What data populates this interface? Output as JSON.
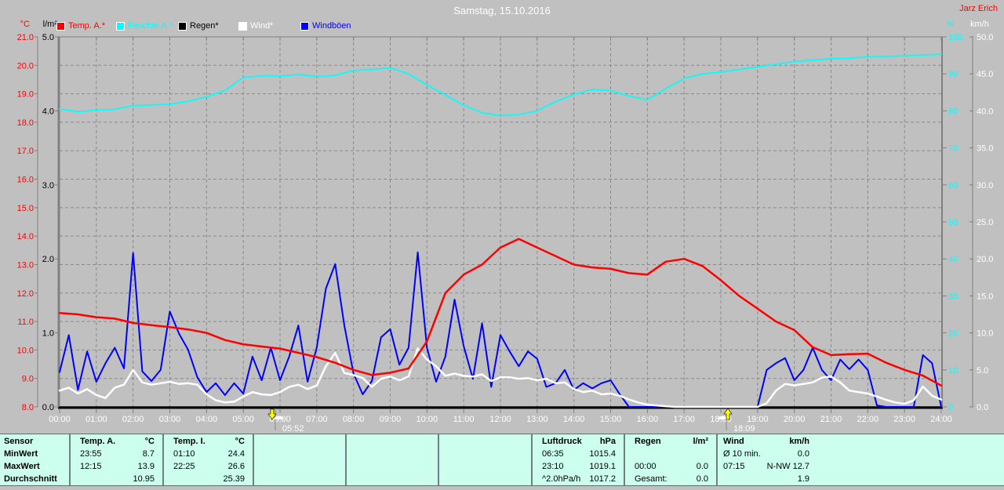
{
  "window": {
    "title": "Samstag, 15.10.2016",
    "author": "Jarz Erich"
  },
  "axis_units": {
    "temp": "°C",
    "rain": "l/m²",
    "humidity": "%",
    "wind": "km/h"
  },
  "legend": {
    "items": [
      {
        "label": "Temp. A.*",
        "color": "#ff0000"
      },
      {
        "label": "Feuchte A.*",
        "color": "#00ffff"
      },
      {
        "label": "Regen*",
        "color": "#000000"
      },
      {
        "label": "Wind*",
        "color": "#ffffff"
      },
      {
        "label": "Windböen",
        "color": "#0000ff"
      }
    ]
  },
  "sun_markers": [
    {
      "name": "sunrise",
      "time_label": "05:52",
      "hour": 5.87,
      "icon": "sun-arrow-down-icon"
    },
    {
      "name": "sunset",
      "time_label": "18:09",
      "hour": 18.15,
      "icon": "sun-arrow-up-icon"
    }
  ],
  "chart_data": {
    "type": "line",
    "title": "Samstag, 15.10.2016",
    "grid": "dashed, 1 °C horizontal steps, 1 hour vertical steps",
    "x_axis": {
      "labels": [
        "00:00",
        "01:00",
        "02:00",
        "03:00",
        "04:00",
        "05:00",
        "06:00",
        "07:00",
        "08:00",
        "09:00",
        "10:00",
        "11:00",
        "12:00",
        "13:00",
        "14:00",
        "15:00",
        "16:00",
        "17:00",
        "18:00",
        "19:00",
        "20:00",
        "21:00",
        "22:00",
        "23:00",
        "24:00"
      ],
      "range_hours": [
        0,
        24
      ]
    },
    "axes": {
      "temp_c": {
        "unit": "°C",
        "color": "#ff0000",
        "range": [
          8,
          21
        ],
        "ticks": [
          "21.0",
          "20.0",
          "19.0",
          "18.0",
          "17.0",
          "16.0",
          "15.0",
          "14.0",
          "13.0",
          "12.0",
          "11.0",
          "10.0",
          "9.0",
          "8.0"
        ]
      },
      "rain_lm2": {
        "unit": "l/m²",
        "color": "#000000",
        "range": [
          0,
          5
        ],
        "ticks": [
          "5.0",
          "4.0",
          "3.0",
          "2.0",
          "1.0",
          "0.0"
        ]
      },
      "humidity_pct": {
        "unit": "%",
        "color": "#00ffff",
        "range": [
          0,
          100
        ],
        "ticks": [
          "100",
          "90",
          "80",
          "70",
          "60",
          "50",
          "40",
          "30",
          "20",
          "10",
          "0"
        ]
      },
      "wind_kmh": {
        "unit": "km/h",
        "color": "#ffffff",
        "range": [
          0,
          50
        ],
        "ticks": [
          "50.0",
          "45.0",
          "40.0",
          "35.0",
          "30.0",
          "25.0",
          "20.0",
          "15.0",
          "10.0",
          "5.0",
          "0.0"
        ]
      }
    },
    "series": [
      {
        "name": "Temp. A.*",
        "color": "#ff0000",
        "axis": "temp_c",
        "step_hours": 0.5,
        "values": [
          11.3,
          11.25,
          11.15,
          11.1,
          10.95,
          10.87,
          10.8,
          10.72,
          10.6,
          10.35,
          10.2,
          10.12,
          10.05,
          9.9,
          9.75,
          9.55,
          9.3,
          9.12,
          9.2,
          9.35,
          10.3,
          12.0,
          12.65,
          13.0,
          13.6,
          13.9,
          13.6,
          13.3,
          13.0,
          12.9,
          12.85,
          12.7,
          12.65,
          13.1,
          13.2,
          12.95,
          12.45,
          11.9,
          11.45,
          11.0,
          10.7,
          10.1,
          9.82,
          9.85,
          9.87,
          9.55,
          9.3,
          9.1,
          8.75
        ]
      },
      {
        "name": "Feuchte A.*",
        "color": "#00ffff",
        "axis": "humidity_pct",
        "step_hours": 0.5,
        "values": [
          80.5,
          79.8,
          80.2,
          80.4,
          81.4,
          81.6,
          81.8,
          82.6,
          83.8,
          85.5,
          89.0,
          89.5,
          89.4,
          89.8,
          89.3,
          89.6,
          90.9,
          91.2,
          91.6,
          90.0,
          87.0,
          84.3,
          81.5,
          79.5,
          78.7,
          79.0,
          80.0,
          82.5,
          84.4,
          85.8,
          85.5,
          84.0,
          83.0,
          86.0,
          88.8,
          90.0,
          90.5,
          91.2,
          91.9,
          92.6,
          93.3,
          93.7,
          94.1,
          94.2,
          94.6,
          94.7,
          94.9,
          95.1,
          95.3
        ]
      },
      {
        "name": "Regen*",
        "color": "#000000",
        "axis": "rain_lm2",
        "step_hours": 0.5,
        "values": [
          0,
          0,
          0,
          0,
          0,
          0,
          0,
          0,
          0,
          0,
          0,
          0,
          0,
          0,
          0,
          0,
          0,
          0,
          0,
          0,
          0,
          0,
          0,
          0,
          0,
          0,
          0,
          0,
          0,
          0,
          0,
          0,
          0,
          0,
          0,
          0,
          0,
          0,
          0,
          0,
          0,
          0,
          0,
          0,
          0,
          0,
          0,
          0,
          0
        ]
      },
      {
        "name": "Wind*",
        "color": "#ffffff",
        "axis": "wind_kmh",
        "step_hours": 0.25,
        "values": [
          2.2,
          2.6,
          1.8,
          2.4,
          1.6,
          1.2,
          2.6,
          3.0,
          5.0,
          3.3,
          3.0,
          3.2,
          3.4,
          3.1,
          3.2,
          3.0,
          1.7,
          0.9,
          0.6,
          0.7,
          1.4,
          2.0,
          1.7,
          1.6,
          2.0,
          2.7,
          3.0,
          2.4,
          2.9,
          5.5,
          7.3,
          4.6,
          4.3,
          3.9,
          2.7,
          3.8,
          4.1,
          3.6,
          4.1,
          7.9,
          6.4,
          5.5,
          4.2,
          4.5,
          4.2,
          4.1,
          4.4,
          3.5,
          4.0,
          4.0,
          3.8,
          3.9,
          3.6,
          3.8,
          3.2,
          3.3,
          2.4,
          2.0,
          2.2,
          1.7,
          1.8,
          1.5,
          1.0,
          0.6,
          0.3,
          0.2,
          0.1,
          0,
          0,
          0,
          0,
          0,
          0,
          0,
          0,
          0,
          0,
          0.5,
          2.2,
          3.1,
          2.9,
          3.1,
          3.3,
          3.95,
          4.1,
          3.3,
          2.2,
          2.0,
          1.8,
          1.4,
          0.95,
          0.6,
          0.4,
          0.9,
          2.75,
          1.5,
          1.0
        ]
      },
      {
        "name": "Windböen",
        "color": "#0000ff",
        "axis": "wind_kmh",
        "step_hours": 0.25,
        "values": [
          4.7,
          9.7,
          2.3,
          7.5,
          3.4,
          5.9,
          8.0,
          5.2,
          20.8,
          4.8,
          3.5,
          5.0,
          12.9,
          9.9,
          7.7,
          4.0,
          2.0,
          3.2,
          1.6,
          3.2,
          1.8,
          6.8,
          3.6,
          8.0,
          3.6,
          6.8,
          11.0,
          3.4,
          8.0,
          16.0,
          19.3,
          11.0,
          4.5,
          1.7,
          3.5,
          9.4,
          10.5,
          5.7,
          8.0,
          20.9,
          8.0,
          3.4,
          6.8,
          14.5,
          8.2,
          3.8,
          11.3,
          2.7,
          9.7,
          7.5,
          5.5,
          7.5,
          6.5,
          2.7,
          3.2,
          5.0,
          2.3,
          3.2,
          2.5,
          3.2,
          3.6,
          1.7,
          0,
          0,
          0,
          0,
          0,
          0,
          0,
          0,
          0,
          0,
          0,
          0,
          0,
          0,
          0,
          5.0,
          5.9,
          6.6,
          3.6,
          5.0,
          8.0,
          5.0,
          3.6,
          6.4,
          5.1,
          6.4,
          5.0,
          0.2,
          0,
          0,
          0,
          0,
          7.0,
          5.9,
          0
        ]
      }
    ]
  },
  "table": {
    "row_headers": [
      "Sensor",
      "MinWert",
      "MaxWert",
      "Durchschnitt"
    ],
    "columns": [
      {
        "key": "temp_a",
        "name": "Temp. A.",
        "unit": "°C",
        "rows": [
          [
            "23:55",
            "8.7"
          ],
          [
            "12:15",
            "13.9"
          ],
          [
            "",
            "10.95"
          ]
        ]
      },
      {
        "key": "temp_i",
        "name": "Temp. I.",
        "unit": "°C",
        "rows": [
          [
            "01:10",
            "24.4"
          ],
          [
            "22:25",
            "26.6"
          ],
          [
            "",
            "25.39"
          ]
        ]
      },
      {
        "key": "empty1",
        "name": "",
        "unit": "",
        "rows": [
          [
            "",
            ""
          ],
          [
            "",
            ""
          ],
          [
            "",
            ""
          ]
        ]
      },
      {
        "key": "empty2",
        "name": "",
        "unit": "",
        "rows": [
          [
            "",
            ""
          ],
          [
            "",
            ""
          ],
          [
            "",
            ""
          ]
        ]
      },
      {
        "key": "empty3",
        "name": "",
        "unit": "",
        "rows": [
          [
            "",
            ""
          ],
          [
            "",
            ""
          ],
          [
            "",
            ""
          ]
        ]
      },
      {
        "key": "luftdruck",
        "name": "Luftdruck",
        "unit": "hPa",
        "rows": [
          [
            "06:35",
            "1015.4"
          ],
          [
            "23:10",
            "1019.1"
          ],
          [
            "^2.0hPa/h",
            "1017.2"
          ]
        ]
      },
      {
        "key": "regen",
        "name": "Regen",
        "unit": "l/m²",
        "rows": [
          [
            "",
            ""
          ],
          [
            "00:00",
            "0.0"
          ],
          [
            "Gesamt:",
            "0.0"
          ]
        ]
      },
      {
        "key": "wind",
        "name": "Wind",
        "unit": "km/h",
        "rows": [
          [
            "Ø 10 min.",
            "0.0"
          ],
          [
            "07:15",
            "N-NW 12.7"
          ],
          [
            "",
            "1.9"
          ]
        ]
      }
    ]
  },
  "colors": {
    "background": "#c0c0c0",
    "grid": "#8a8a8a",
    "x_axis_line": "#000000",
    "table_background": "#ccffee",
    "table_separator": "#708080",
    "title_text": "#ffffff",
    "author_text": "#ff0000",
    "sun_marker_arrow": "#ffff00"
  }
}
